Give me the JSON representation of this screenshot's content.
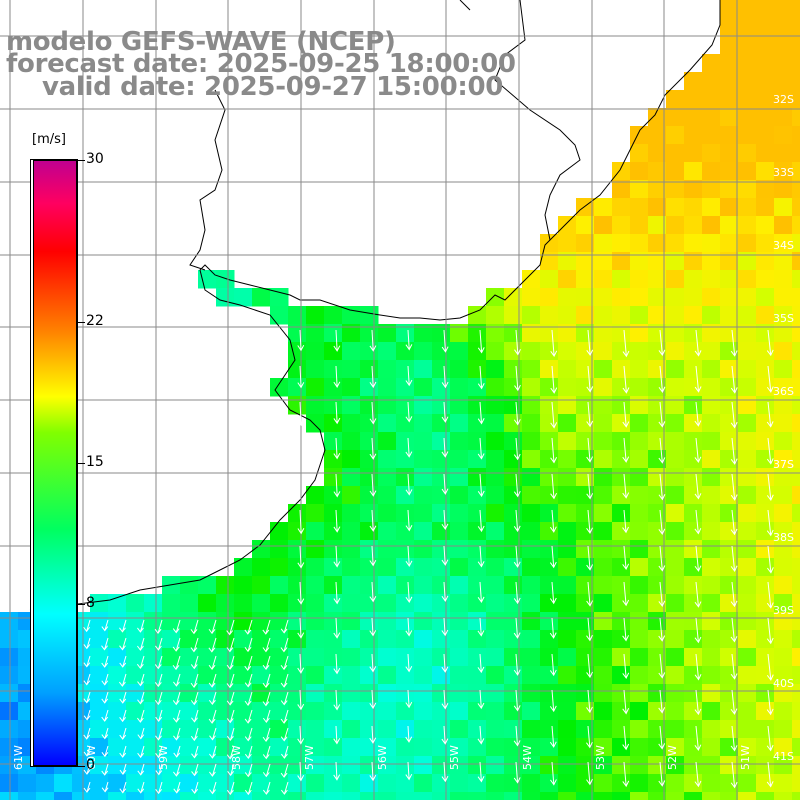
{
  "title": {
    "model": "modelo GEFS-WAVE (NCEP)",
    "forecast_date": "forecast date: 2025-09-25 18:00:00",
    "valid_date": "valid date: 2025-09-27 15:00:00"
  },
  "colorbar": {
    "unit": "[m/s]",
    "min": 0,
    "max": 30,
    "ticks": [
      "30",
      "22",
      "15",
      "8",
      "0"
    ],
    "tick_values": [
      30,
      22,
      15,
      8,
      0
    ]
  },
  "map": {
    "variable": "wind speed",
    "units": "m/s",
    "lat_labels": [
      "32S",
      "33S",
      "34S",
      "35S",
      "36S",
      "37S",
      "38S",
      "39S",
      "40S",
      "41S"
    ],
    "lon_labels": [
      "61W",
      "60W",
      "59W",
      "58W",
      "57W",
      "56W",
      "55W",
      "54W",
      "53W",
      "52W",
      "51W"
    ],
    "lat_range": [
      -41.3,
      -30.5
    ],
    "lon_range": [
      -61.5,
      -50.5
    ],
    "wind_direction": "from north-northeast",
    "colors": {
      "land": "#ffffff",
      "grid": "#888888",
      "coast": "#000000",
      "arrows": "#ffffff",
      "title": "#8a8a8a"
    }
  }
}
